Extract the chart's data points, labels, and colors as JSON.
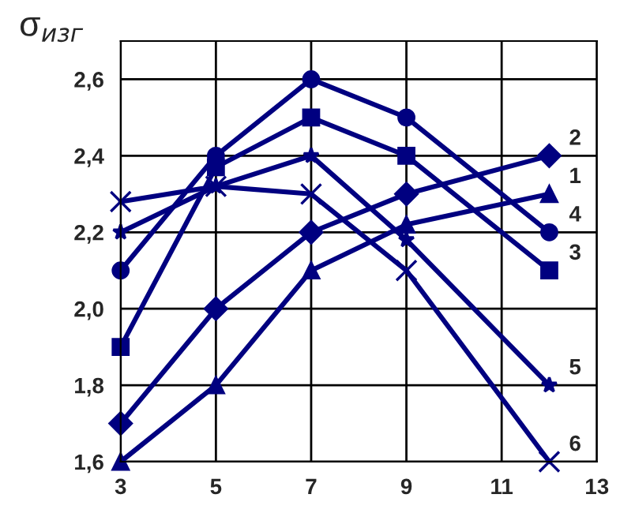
{
  "chart_data": {
    "type": "line",
    "ylabel": "σ$_{изг}$",
    "x": [
      3,
      5,
      7,
      9,
      12
    ],
    "series": [
      {
        "name": "1",
        "color": "#000080",
        "marker": "triangle",
        "values": [
          1.6,
          1.8,
          2.1,
          2.22,
          2.3
        ]
      },
      {
        "name": "2",
        "color": "#000080",
        "marker": "diamond",
        "values": [
          1.7,
          2.0,
          2.2,
          2.3,
          2.4
        ]
      },
      {
        "name": "3",
        "color": "#000080",
        "marker": "square",
        "values": [
          1.9,
          2.37,
          2.5,
          2.4,
          2.1
        ]
      },
      {
        "name": "4",
        "color": "#000080",
        "marker": "circle",
        "values": [
          2.1,
          2.4,
          2.6,
          2.5,
          2.2
        ]
      },
      {
        "name": "5",
        "color": "#000080",
        "marker": "star",
        "values": [
          2.2,
          2.32,
          2.4,
          2.18,
          1.8
        ]
      },
      {
        "name": "6",
        "color": "#000080",
        "marker": "cross",
        "values": [
          2.28,
          2.32,
          2.3,
          2.1,
          1.6
        ]
      }
    ],
    "xlim": [
      3,
      13
    ],
    "xticks": [
      3,
      5,
      7,
      9,
      11,
      13
    ],
    "ylim": [
      1.6,
      2.7
    ],
    "yticks": [
      {
        "value": 1.6,
        "label": "1,6"
      },
      {
        "value": 1.8,
        "label": "1,8"
      },
      {
        "value": 2.0,
        "label": "2,0"
      },
      {
        "value": 2.2,
        "label": "2,2"
      },
      {
        "value": 2.4,
        "label": "2,4"
      },
      {
        "value": 2.6,
        "label": "2,6"
      }
    ],
    "grid": true,
    "line_style": "solid",
    "legend": false
  }
}
